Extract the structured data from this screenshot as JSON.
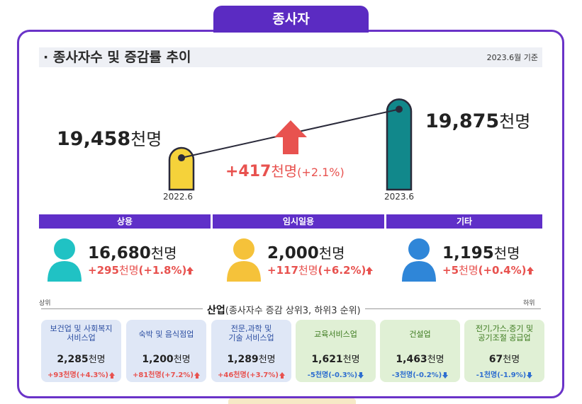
{
  "tab_label": "종사자",
  "header": {
    "title": "· 종사자수 및 증감률 추이",
    "note": "2023.6월 기준"
  },
  "chart_data": {
    "type": "bar",
    "categories": [
      "2022.6",
      "2023.6"
    ],
    "values": [
      19458,
      19875
    ],
    "unit": "천명",
    "value_labels": [
      "19,458",
      "19,875"
    ],
    "change_label": "+417",
    "change_pct": "(+2.1%)",
    "colors": [
      "#f5d23a",
      "#11888b"
    ]
  },
  "unit": "천명",
  "employment_types": [
    {
      "label": "상용",
      "value": "16,680",
      "change": "+295",
      "pct": "(+1.8%)",
      "icon_color": "#20c2c4",
      "icon": "person-icon"
    },
    {
      "label": "임시일용",
      "value": "2,000",
      "change": "+117",
      "pct": "(+6.2%)",
      "icon_color": "#f5c23a",
      "icon": "person-icon"
    },
    {
      "label": "기타",
      "value": "1,195",
      "change": "+5",
      "pct": "(+0.4%)",
      "icon_color": "#2f86d8",
      "icon": "person-icon"
    }
  ],
  "industry": {
    "title_bold": "산업",
    "title_rest": "(종사자수 증감 상위3, 하위3 순위)",
    "top_label": "상위",
    "bottom_label": "하위",
    "cards": [
      {
        "name": "보건업 및 사회복지\n서비스업",
        "value": "2,285",
        "change": "+93천명(+4.3%)",
        "dir": "up",
        "tone": "blue"
      },
      {
        "name": "숙박 및 음식점업",
        "value": "1,200",
        "change": "+81천명(+7.2%)",
        "dir": "up",
        "tone": "blue"
      },
      {
        "name": "전문,과학 및\n기술 서비스업",
        "value": "1,289",
        "change": "+46천명(+3.7%)",
        "dir": "up",
        "tone": "blue"
      },
      {
        "name": "교육서비스업",
        "value": "1,621",
        "change": "-5천명(-0.3%)",
        "dir": "down",
        "tone": "green"
      },
      {
        "name": "건설업",
        "value": "1,463",
        "change": "-3천명(-0.2%)",
        "dir": "down",
        "tone": "green"
      },
      {
        "name": "전기,가스,증기 및\n공기조절 공급업",
        "value": "67",
        "change": "-1천명(-1.9%)",
        "dir": "down",
        "tone": "green"
      }
    ]
  }
}
